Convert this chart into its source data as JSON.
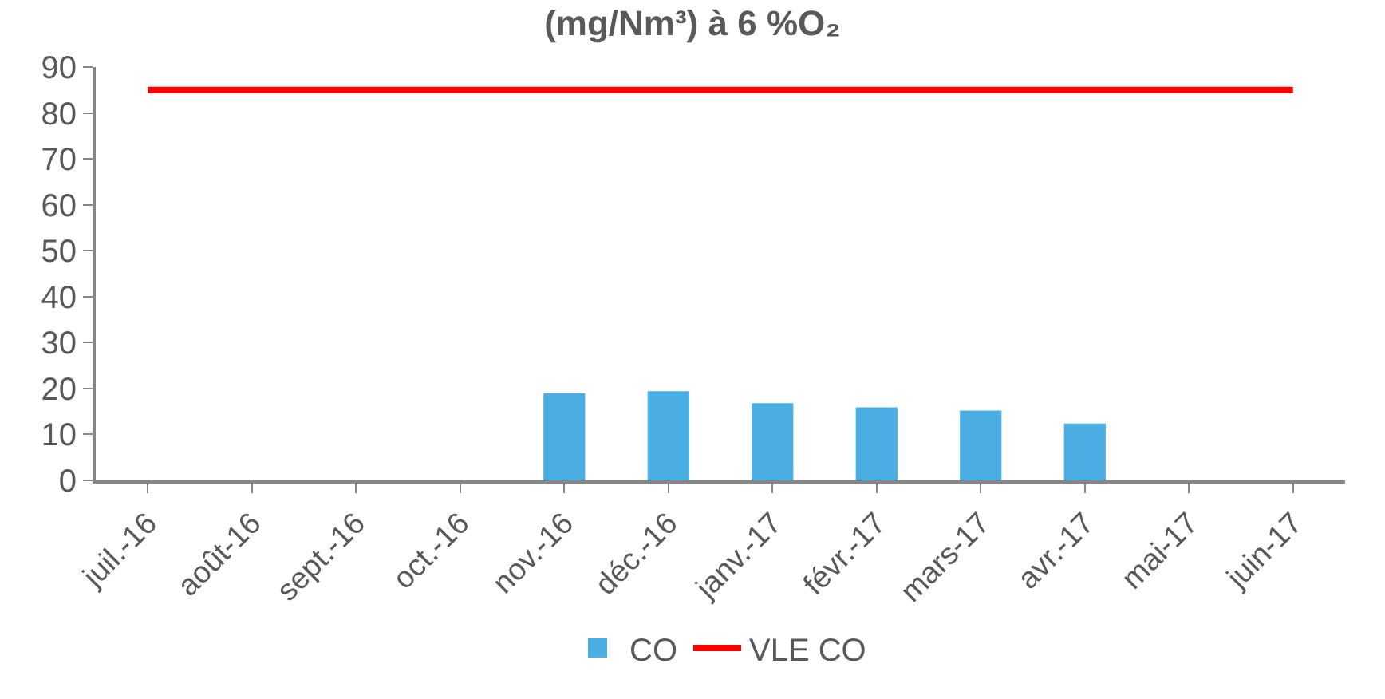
{
  "chart_data": {
    "type": "bar",
    "title": "(mg/Nm³) à 6 %O₂",
    "categories": [
      "juil.-16",
      "août-16",
      "sept.-16",
      "oct.-16",
      "nov.-16",
      "déc.-16",
      "janv.-17",
      "févr.-17",
      "mars-17",
      "avr.-17",
      "mai-17",
      "juin-17"
    ],
    "series": [
      {
        "name": "CO",
        "color": "#4aaee2",
        "values": [
          null,
          null,
          null,
          null,
          19,
          19.4,
          16.8,
          15.9,
          15.2,
          12.4,
          null,
          null
        ]
      },
      {
        "name": "VLE CO",
        "type": "line",
        "color": "#ff0000",
        "values": [
          85,
          85,
          85,
          85,
          85,
          85,
          85,
          85,
          85,
          85,
          85,
          85
        ]
      }
    ],
    "ylim": [
      0,
      90
    ],
    "yticks": [
      0,
      10,
      20,
      30,
      40,
      50,
      60,
      70,
      80,
      90
    ],
    "grid": false,
    "legend": "bottom",
    "marker": "none",
    "line_style": "solid"
  }
}
